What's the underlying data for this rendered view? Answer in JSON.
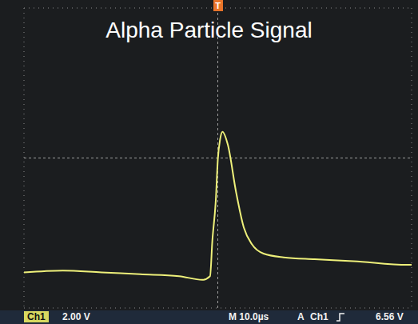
{
  "chart_data": {
    "type": "line",
    "title": "Alpha Particle Signal",
    "x": [
      -50,
      -40,
      -30,
      -20,
      -10,
      -4,
      -2,
      -1.4,
      -0.5,
      0,
      0.6,
      1.2,
      2.6,
      4.7,
      6.7,
      8.8,
      11.8,
      17,
      25,
      35,
      49,
      50
    ],
    "values": [
      -0.1,
      0,
      -0.1,
      -0.2,
      -0.3,
      -0.5,
      -0.3,
      1.6,
      3.8,
      5.9,
      7.0,
      7.4,
      6.7,
      4.2,
      2.3,
      1.4,
      0.9,
      0.7,
      0.6,
      0.5,
      0.3,
      0.3
    ],
    "color": "#eef07a",
    "xlim": [
      -50,
      50
    ],
    "xticks": [
      -50,
      -40,
      -30,
      -20,
      -10,
      0,
      10,
      20,
      30,
      40,
      50
    ],
    "ylim": [
      -2,
      14
    ],
    "yticks": [
      -2,
      0,
      2,
      4,
      6,
      8,
      10,
      12,
      14
    ],
    "grid": true,
    "tick_labels": false,
    "annotations": {
      "trigger_marker": "T",
      "channel": "Ch1",
      "volts_per_div": "2.00 V",
      "timebase": "M 10.0µs",
      "trigger_mode": "A",
      "trigger_source": "Ch1",
      "trigger_level": "6.56 V"
    }
  }
}
